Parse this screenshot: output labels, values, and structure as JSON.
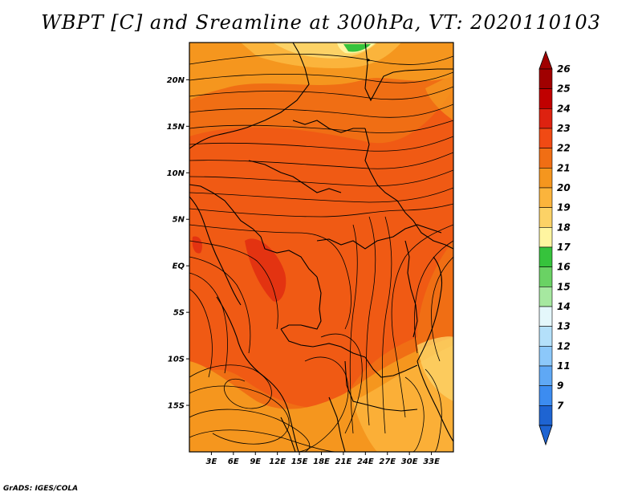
{
  "title": "WBPT [C] and Sreamline at 300hPa, VT: 2020110103",
  "credit": "GrADS: IGES/COLA",
  "map": {
    "lon_range": [
      0,
      36
    ],
    "lat_range": [
      -20,
      24
    ],
    "lat_ticks": [
      {
        "value": 20,
        "label": "20N"
      },
      {
        "value": 15,
        "label": "15N"
      },
      {
        "value": 10,
        "label": "10N"
      },
      {
        "value": 5,
        "label": "5N"
      },
      {
        "value": 0,
        "label": "EQ"
      },
      {
        "value": -5,
        "label": "5S"
      },
      {
        "value": -10,
        "label": "10S"
      },
      {
        "value": -15,
        "label": "15S"
      }
    ],
    "lon_ticks": [
      {
        "value": 3,
        "label": "3E"
      },
      {
        "value": 6,
        "label": "6E"
      },
      {
        "value": 9,
        "label": "9E"
      },
      {
        "value": 12,
        "label": "12E"
      },
      {
        "value": 15,
        "label": "15E"
      },
      {
        "value": 18,
        "label": "18E"
      },
      {
        "value": 21,
        "label": "21E"
      },
      {
        "value": 24,
        "label": "24E"
      },
      {
        "value": 27,
        "label": "27E"
      },
      {
        "value": 30,
        "label": "30E"
      },
      {
        "value": 33,
        "label": "33E"
      }
    ],
    "base_color": "#f06e14"
  },
  "colorbar": {
    "levels": [
      {
        "label": "26",
        "color": "#a00000"
      },
      {
        "label": "25",
        "color": "#c00000"
      },
      {
        "label": "24",
        "color": "#dd2210"
      },
      {
        "label": "23",
        "color": "#f04a14"
      },
      {
        "label": "22",
        "color": "#f06e14"
      },
      {
        "label": "21",
        "color": "#f5961e"
      },
      {
        "label": "20",
        "color": "#fbb43c"
      },
      {
        "label": "19",
        "color": "#fcd266"
      },
      {
        "label": "18",
        "color": "#fff5a0"
      },
      {
        "label": "17",
        "color": "#36c33c"
      },
      {
        "label": "16",
        "color": "#6ad264"
      },
      {
        "label": "15",
        "color": "#a6e8a0"
      },
      {
        "label": "14",
        "color": "#e4f7fb"
      },
      {
        "label": "13",
        "color": "#b4e0fa"
      },
      {
        "label": "12",
        "color": "#8cc8fa"
      },
      {
        "label": "11",
        "color": "#5fa8f5"
      },
      {
        "label": "9",
        "color": "#3c8cf0"
      },
      {
        "label": "7",
        "color": "#1e64d2"
      }
    ],
    "bottom_color": "#1e64d2"
  }
}
